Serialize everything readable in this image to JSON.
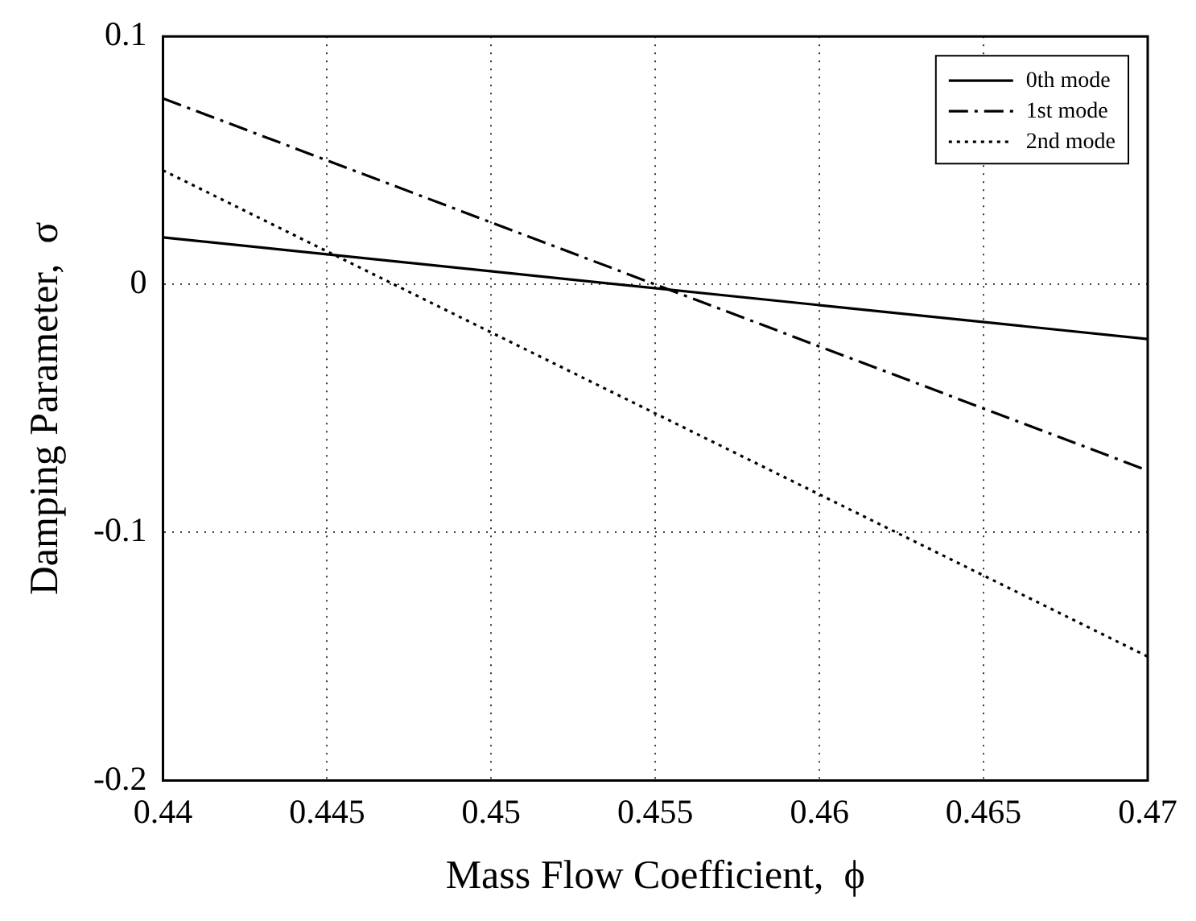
{
  "chart_data": {
    "type": "line",
    "xlabel": "Mass Flow Coefficient,  ϕ",
    "ylabel": "Damping Parameter,  σ",
    "x": [
      0.44,
      0.47
    ],
    "series": [
      {
        "name": "0th mode",
        "color": "#000000",
        "line_style": "solid",
        "values": [
          0.019,
          -0.022
        ]
      },
      {
        "name": "1st mode",
        "color": "#000000",
        "line_style": "dashdot",
        "values": [
          0.075,
          -0.075
        ]
      },
      {
        "name": "2nd mode",
        "color": "#000000",
        "line_style": "dotted",
        "values": [
          0.046,
          -0.15
        ]
      }
    ],
    "xlim": [
      0.44,
      0.47
    ],
    "xticks": [
      0.44,
      0.445,
      0.45,
      0.455,
      0.46,
      0.465,
      0.47
    ],
    "ylim": [
      -0.2,
      0.1
    ],
    "yticks": [
      -0.2,
      -0.1,
      0,
      0.1
    ],
    "grid": true,
    "legend": "top right",
    "marker": "none"
  }
}
